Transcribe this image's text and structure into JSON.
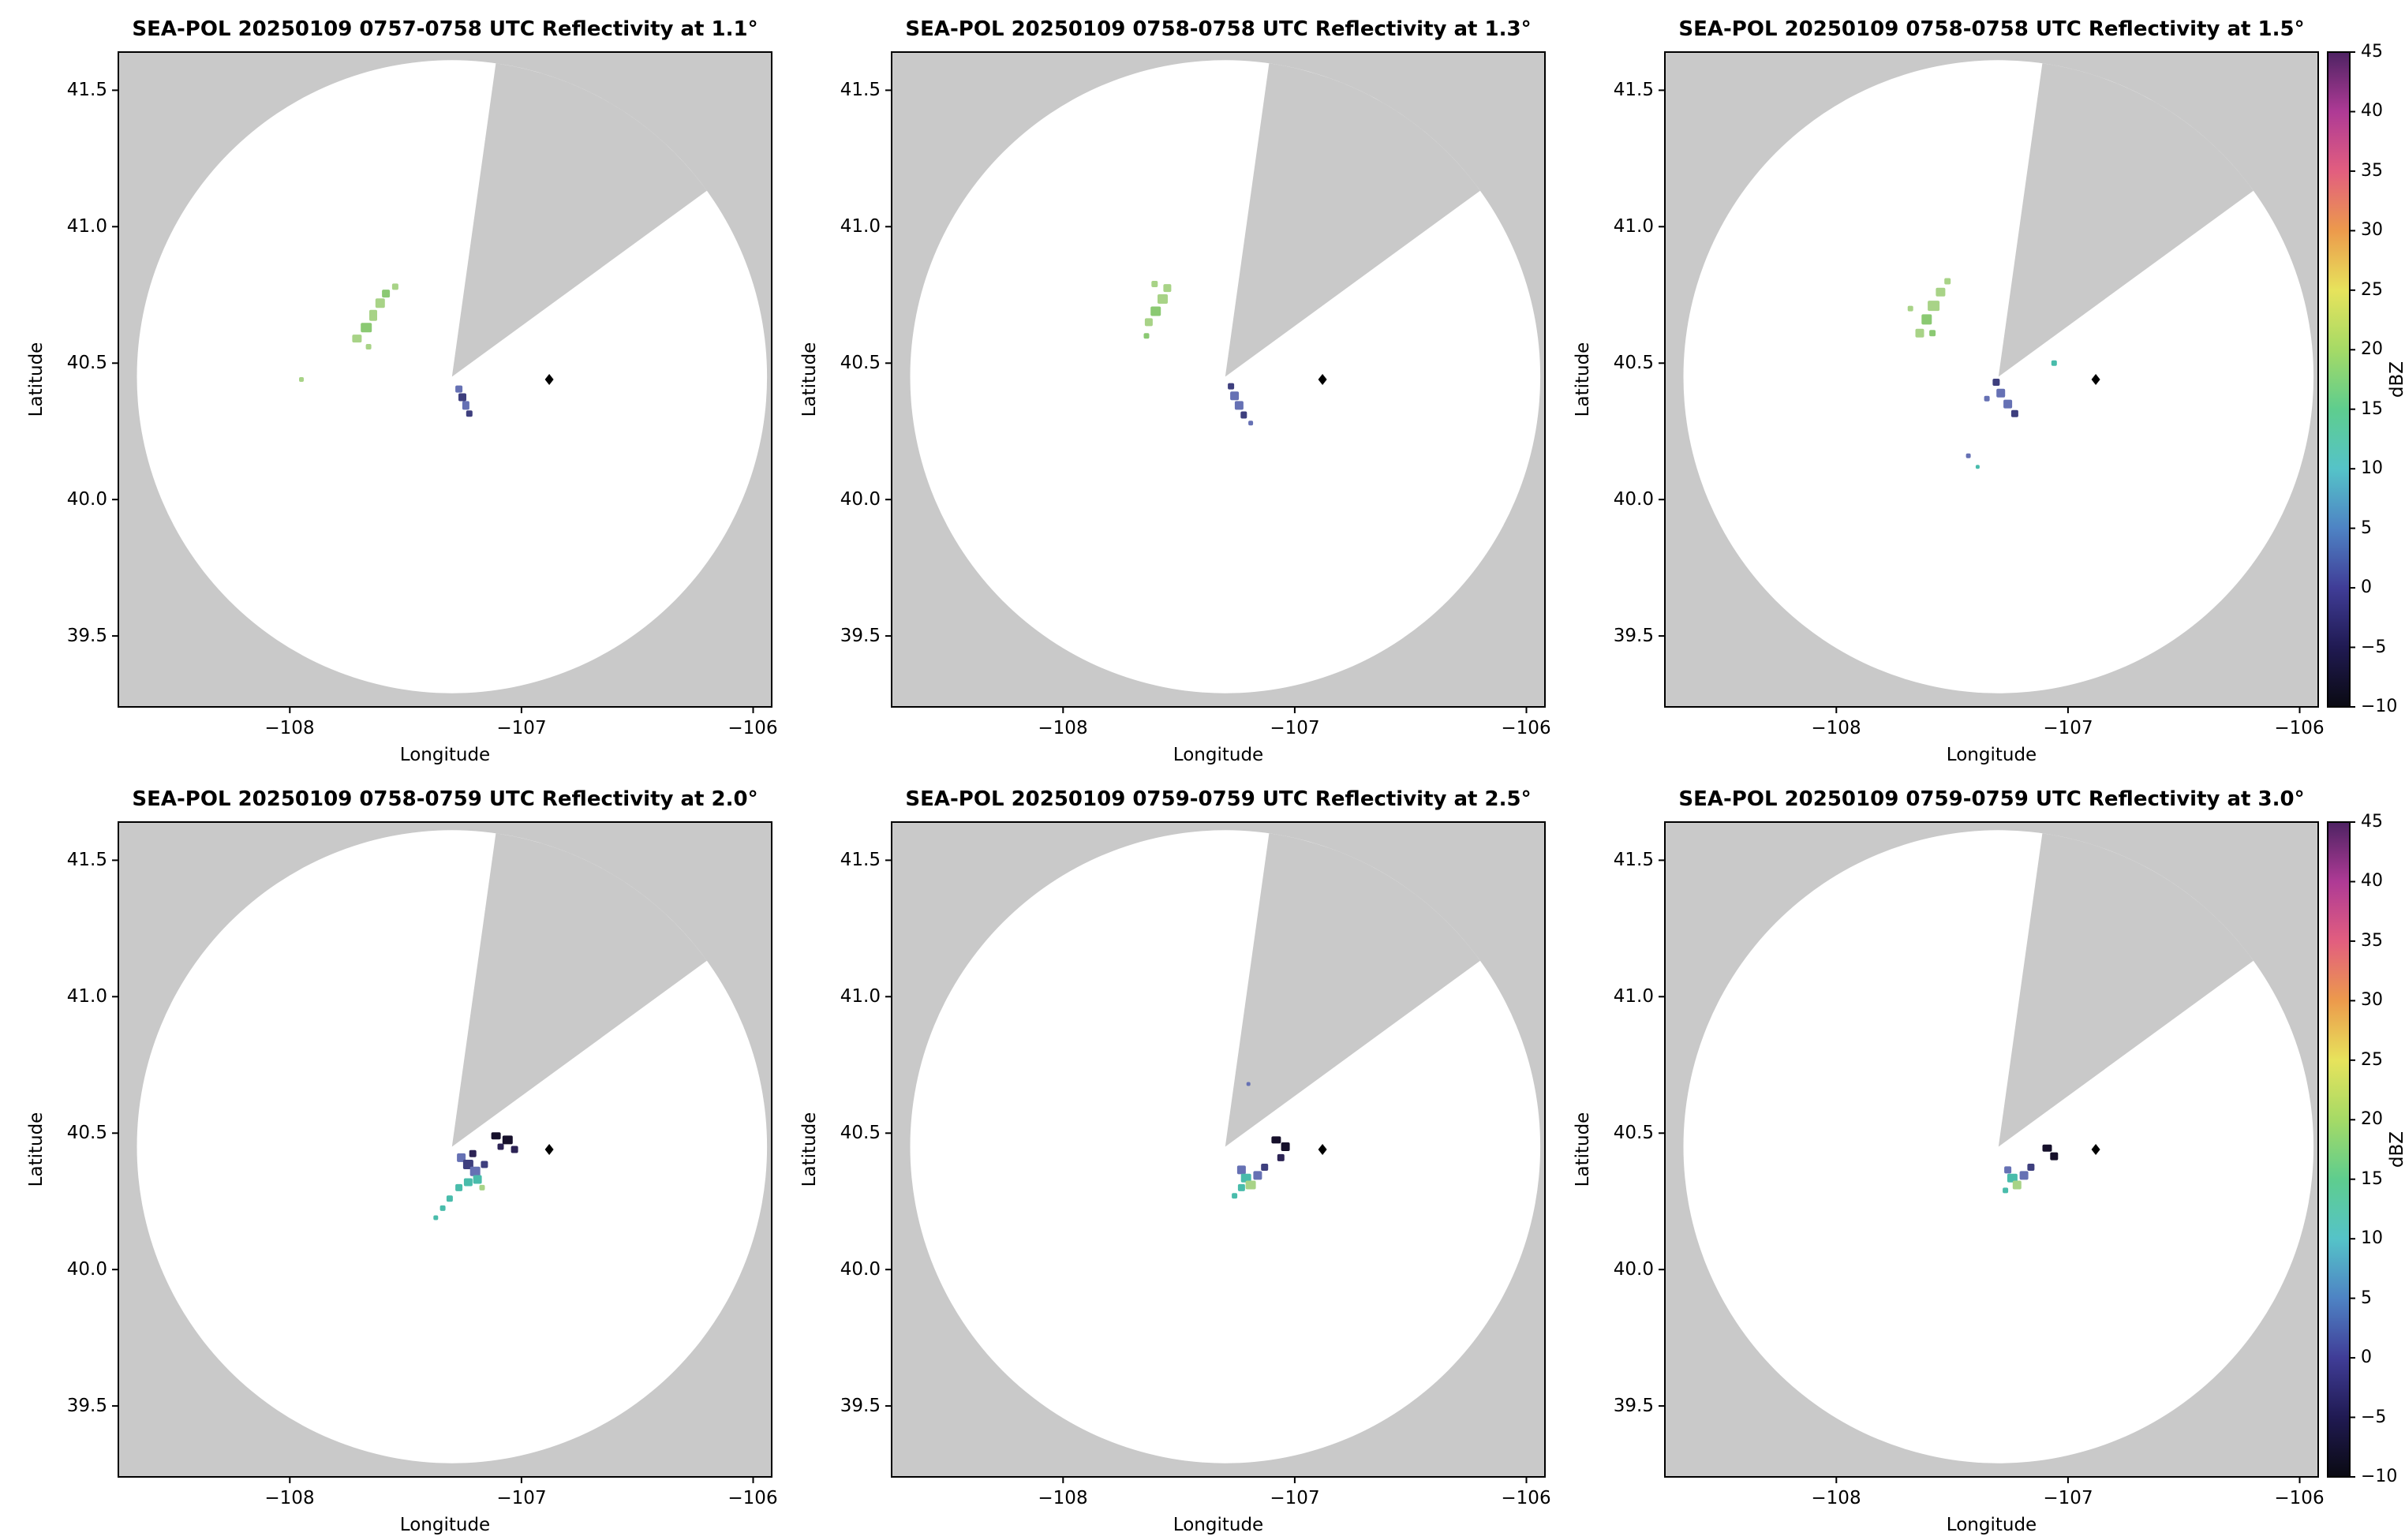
{
  "chart_data": {
    "type": "heatmap",
    "subtype": "radar-ppi-grid",
    "rows": 2,
    "cols": 3,
    "axes": {
      "xlabel": "Longitude",
      "ylabel": "Latitude",
      "xlim": [
        -108.74,
        -105.92
      ],
      "ylim": [
        39.24,
        41.64
      ],
      "xticks": [
        -108,
        -107,
        -106
      ],
      "yticks": [
        39.5,
        40.0,
        40.5,
        41.0,
        41.5
      ],
      "xtick_labels": [
        "−108",
        "−107",
        "−106"
      ],
      "ytick_labels": [
        "39.5",
        "40.0",
        "40.5",
        "41.0",
        "41.5"
      ],
      "grid": false
    },
    "radar": {
      "lon": -107.3,
      "lat": 40.45,
      "radius_lon": 1.36,
      "radius_lat": 1.16,
      "wedge_azimuth_deg": [
        8,
        54
      ]
    },
    "marker": {
      "lon": -106.88,
      "lat": 40.44
    },
    "colors": {
      "outside": "#c9c9c9",
      "inside": "#ffffff",
      "marker": "#000000"
    },
    "palette": {
      "g": "#a8d387",
      "g2": "#8bc973",
      "t": "#49bcab",
      "b": "#6671b4",
      "n": "#3e3f7e",
      "p": "#2c2355",
      "k": "#16102b"
    },
    "panels": [
      {
        "title": "SEA-POL 20250109 0757-0758 UTC Reflectivity at 1.1°",
        "elevation_deg": 1.1,
        "time_utc": "0757-0758",
        "date": "20250109",
        "echoes": [
          [
            -107.71,
            40.59,
            12,
            10,
            "g"
          ],
          [
            -107.67,
            40.63,
            14,
            12,
            "g2"
          ],
          [
            -107.64,
            40.675,
            10,
            14,
            "g"
          ],
          [
            -107.61,
            40.72,
            12,
            12,
            "g"
          ],
          [
            -107.585,
            40.755,
            10,
            10,
            "g2"
          ],
          [
            -107.545,
            40.78,
            8,
            8,
            "g"
          ],
          [
            -107.66,
            40.56,
            7,
            7,
            "g"
          ],
          [
            -107.95,
            40.44,
            6,
            6,
            "g"
          ],
          [
            -107.27,
            40.405,
            9,
            9,
            "b"
          ],
          [
            -107.255,
            40.375,
            10,
            10,
            "n"
          ],
          [
            -107.24,
            40.345,
            9,
            11,
            "b"
          ],
          [
            -107.225,
            40.315,
            8,
            8,
            "n"
          ]
        ]
      },
      {
        "title": "SEA-POL 20250109 0758-0758 UTC Reflectivity at 1.3°",
        "elevation_deg": 1.3,
        "time_utc": "0758-0758",
        "date": "20250109",
        "echoes": [
          [
            -107.63,
            40.65,
            10,
            10,
            "g"
          ],
          [
            -107.6,
            40.69,
            13,
            12,
            "g2"
          ],
          [
            -107.57,
            40.735,
            13,
            12,
            "g"
          ],
          [
            -107.55,
            40.775,
            10,
            10,
            "g"
          ],
          [
            -107.605,
            40.79,
            8,
            8,
            "g"
          ],
          [
            -107.64,
            40.6,
            7,
            7,
            "g2"
          ],
          [
            -107.275,
            40.415,
            8,
            8,
            "n"
          ],
          [
            -107.26,
            40.38,
            11,
            11,
            "b"
          ],
          [
            -107.24,
            40.345,
            11,
            11,
            "b"
          ],
          [
            -107.22,
            40.31,
            8,
            9,
            "n"
          ],
          [
            -107.19,
            40.28,
            6,
            6,
            "b"
          ]
        ]
      },
      {
        "title": "SEA-POL 20250109 0758-0758 UTC Reflectivity at 1.5°",
        "elevation_deg": 1.5,
        "time_utc": "0758-0758",
        "date": "20250109",
        "echoes": [
          [
            -107.64,
            40.61,
            11,
            11,
            "g"
          ],
          [
            -107.61,
            40.66,
            13,
            13,
            "g2"
          ],
          [
            -107.58,
            40.71,
            15,
            13,
            "g"
          ],
          [
            -107.55,
            40.76,
            12,
            11,
            "g"
          ],
          [
            -107.52,
            40.8,
            8,
            8,
            "g"
          ],
          [
            -107.585,
            40.61,
            8,
            8,
            "g2"
          ],
          [
            -107.68,
            40.7,
            7,
            7,
            "g"
          ],
          [
            -107.31,
            40.43,
            9,
            9,
            "n"
          ],
          [
            -107.29,
            40.39,
            11,
            11,
            "b"
          ],
          [
            -107.26,
            40.35,
            11,
            11,
            "b"
          ],
          [
            -107.23,
            40.315,
            9,
            9,
            "n"
          ],
          [
            -107.35,
            40.37,
            7,
            7,
            "b"
          ],
          [
            -107.06,
            40.5,
            7,
            7,
            "t"
          ],
          [
            -107.43,
            40.16,
            6,
            6,
            "b"
          ],
          [
            -107.39,
            40.12,
            5,
            5,
            "t"
          ]
        ]
      },
      {
        "title": "SEA-POL 20250109 0758-0759 UTC Reflectivity at 2.0°",
        "elevation_deg": 2.0,
        "time_utc": "0758-0759",
        "date": "20250109",
        "echoes": [
          [
            -107.11,
            40.49,
            12,
            9,
            "k"
          ],
          [
            -107.06,
            40.475,
            13,
            11,
            "k"
          ],
          [
            -107.03,
            40.44,
            9,
            9,
            "p"
          ],
          [
            -107.09,
            40.45,
            8,
            8,
            "p"
          ],
          [
            -107.26,
            40.41,
            11,
            11,
            "b"
          ],
          [
            -107.23,
            40.385,
            13,
            12,
            "n"
          ],
          [
            -107.2,
            40.36,
            13,
            12,
            "b"
          ],
          [
            -107.19,
            40.33,
            11,
            11,
            "t"
          ],
          [
            -107.23,
            40.32,
            11,
            10,
            "t"
          ],
          [
            -107.27,
            40.3,
            9,
            9,
            "t"
          ],
          [
            -107.21,
            40.425,
            9,
            9,
            "p"
          ],
          [
            -107.16,
            40.385,
            9,
            9,
            "n"
          ],
          [
            -107.31,
            40.26,
            8,
            8,
            "t"
          ],
          [
            -107.34,
            40.225,
            7,
            7,
            "t"
          ],
          [
            -107.37,
            40.19,
            6,
            6,
            "t"
          ],
          [
            -107.17,
            40.3,
            7,
            7,
            "g"
          ]
        ]
      },
      {
        "title": "SEA-POL 20250109 0759-0759 UTC Reflectivity at 2.5°",
        "elevation_deg": 2.5,
        "time_utc": "0759-0759",
        "date": "20250109",
        "echoes": [
          [
            -107.08,
            40.475,
            12,
            9,
            "k"
          ],
          [
            -107.04,
            40.45,
            11,
            11,
            "k"
          ],
          [
            -107.06,
            40.41,
            9,
            9,
            "p"
          ],
          [
            -107.23,
            40.365,
            11,
            11,
            "b"
          ],
          [
            -107.21,
            40.335,
            13,
            11,
            "t"
          ],
          [
            -107.19,
            40.31,
            13,
            11,
            "g"
          ],
          [
            -107.23,
            40.3,
            9,
            9,
            "t"
          ],
          [
            -107.16,
            40.345,
            11,
            11,
            "b"
          ],
          [
            -107.13,
            40.375,
            9,
            9,
            "n"
          ],
          [
            -107.26,
            40.27,
            7,
            7,
            "t"
          ],
          [
            -107.2,
            40.68,
            5,
            5,
            "b"
          ]
        ]
      },
      {
        "title": "SEA-POL 20250109 0759-0759 UTC Reflectivity at 3.0°",
        "elevation_deg": 3.0,
        "time_utc": "0759-0759",
        "date": "20250109",
        "echoes": [
          [
            -107.09,
            40.445,
            12,
            9,
            "k"
          ],
          [
            -107.06,
            40.415,
            10,
            10,
            "k"
          ],
          [
            -107.26,
            40.365,
            9,
            9,
            "b"
          ],
          [
            -107.24,
            40.335,
            13,
            11,
            "t"
          ],
          [
            -107.22,
            40.31,
            11,
            11,
            "g"
          ],
          [
            -107.19,
            40.345,
            11,
            11,
            "b"
          ],
          [
            -107.16,
            40.375,
            9,
            9,
            "n"
          ],
          [
            -107.27,
            40.29,
            7,
            7,
            "t"
          ]
        ]
      }
    ],
    "colorbar": {
      "label": "dBZ",
      "vmin": -10,
      "vmax": 45,
      "tick_labels": [
        "45",
        "40",
        "35",
        "30",
        "25",
        "20",
        "15",
        "10",
        "5",
        "0",
        "−5",
        "−10"
      ],
      "stops": [
        {
          "v": -10,
          "c": "#0a0a12"
        },
        {
          "v": -5,
          "c": "#201a52"
        },
        {
          "v": 0,
          "c": "#403d97"
        },
        {
          "v": 5,
          "c": "#4e83c4"
        },
        {
          "v": 10,
          "c": "#55c3c8"
        },
        {
          "v": 15,
          "c": "#5ecd8e"
        },
        {
          "v": 20,
          "c": "#a5da66"
        },
        {
          "v": 25,
          "c": "#e7e35c"
        },
        {
          "v": 30,
          "c": "#ec9a4c"
        },
        {
          "v": 35,
          "c": "#e25e7f"
        },
        {
          "v": 40,
          "c": "#ae3a95"
        },
        {
          "v": 45,
          "c": "#4e2363"
        }
      ]
    }
  }
}
